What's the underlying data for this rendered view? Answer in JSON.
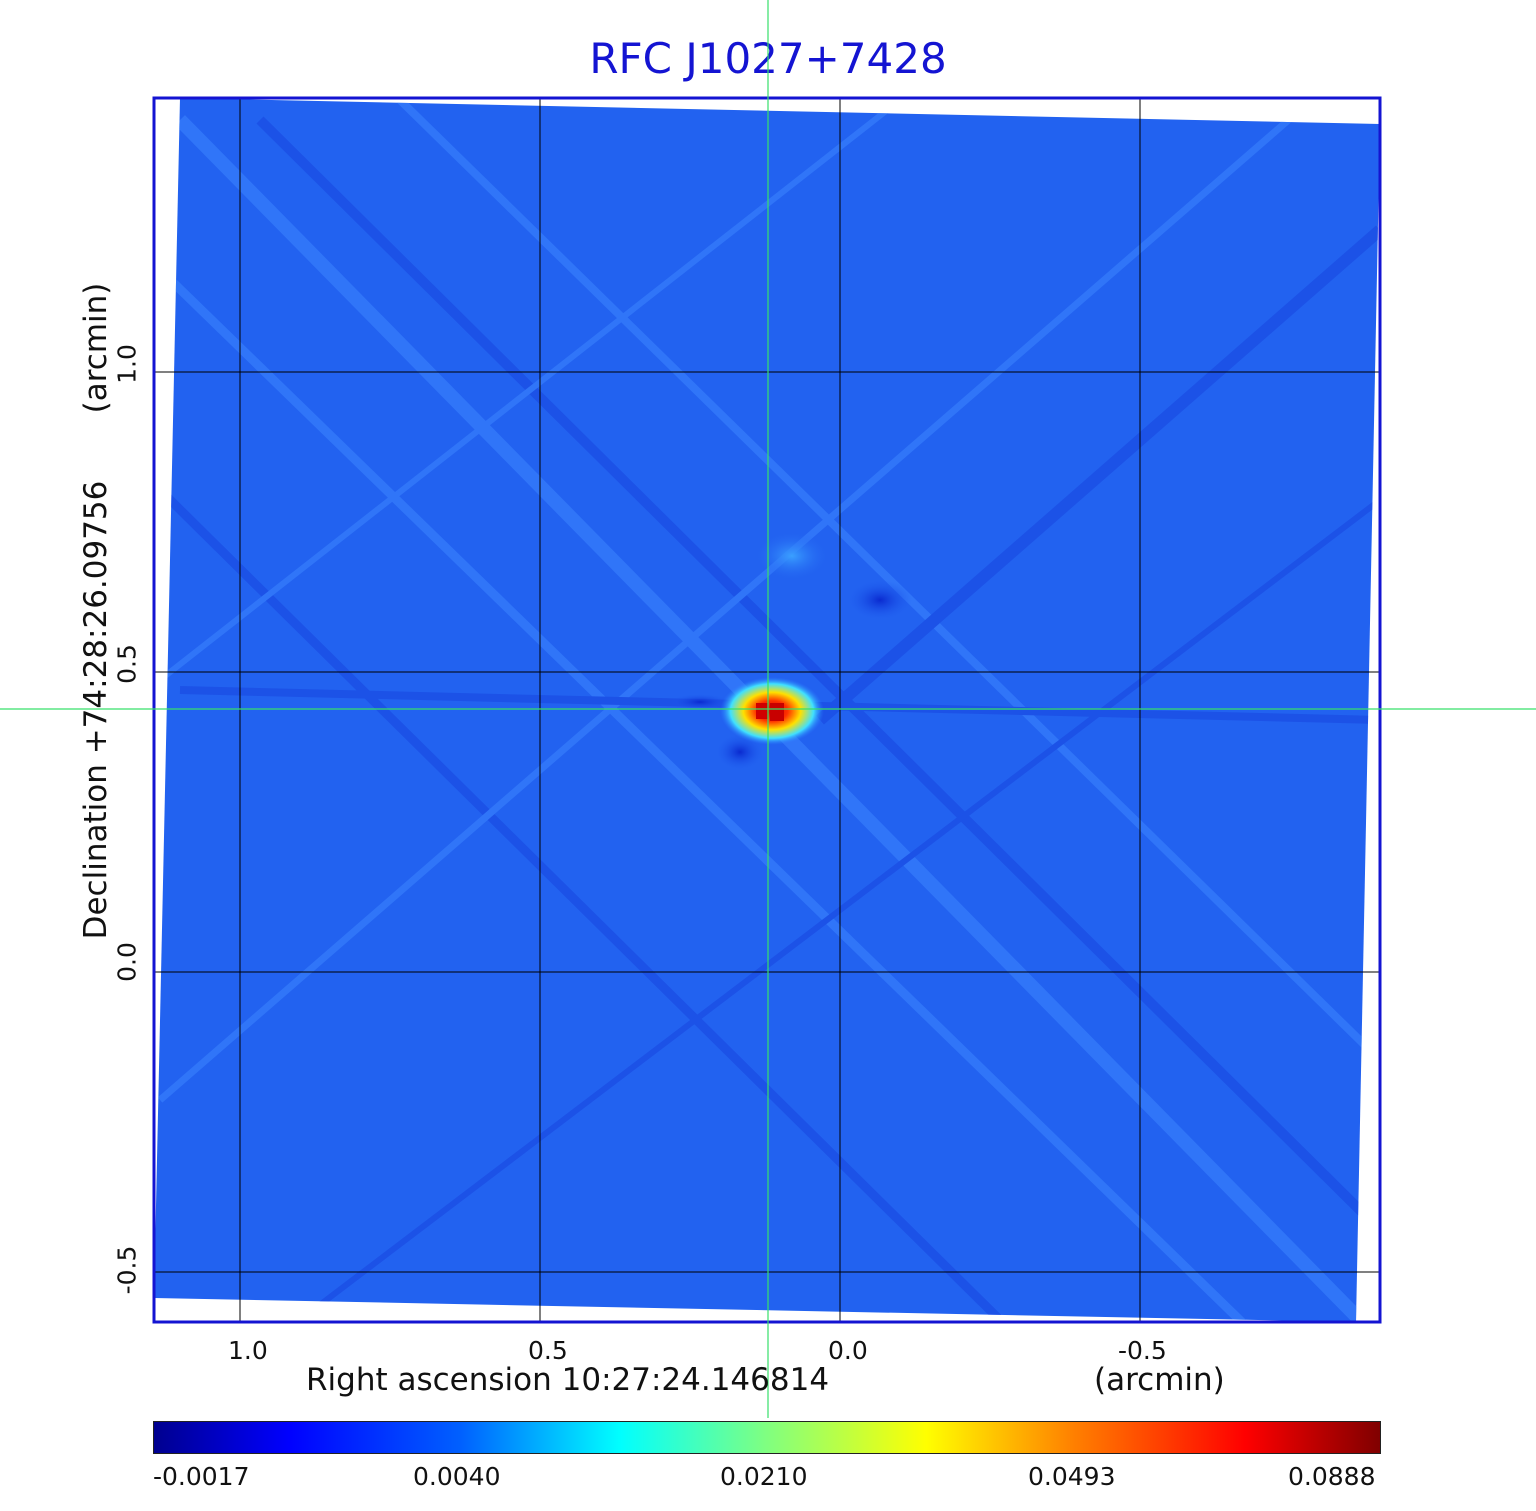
{
  "title": "RFC J1027+7428",
  "y_axis": {
    "label": "Declination  +74:28:26.09756",
    "unit": "(arcmin)",
    "ticks": [
      "-0.5",
      "0.0",
      "0.5",
      "1.0"
    ]
  },
  "x_axis": {
    "label": "Right ascension  10:27:24.146814",
    "unit": "(arcmin)",
    "ticks": [
      "1.0",
      "0.5",
      "0.0",
      "-0.5"
    ]
  },
  "colorbar": {
    "ticks": [
      "-0.0017",
      "0.0040",
      "0.0210",
      "0.0493",
      "0.0888"
    ],
    "colormap": "jet"
  },
  "colors": {
    "title": "#1414d2",
    "frame": "#1414d2",
    "crosshair": "#37e06a",
    "background_field": "#2060f0"
  }
}
